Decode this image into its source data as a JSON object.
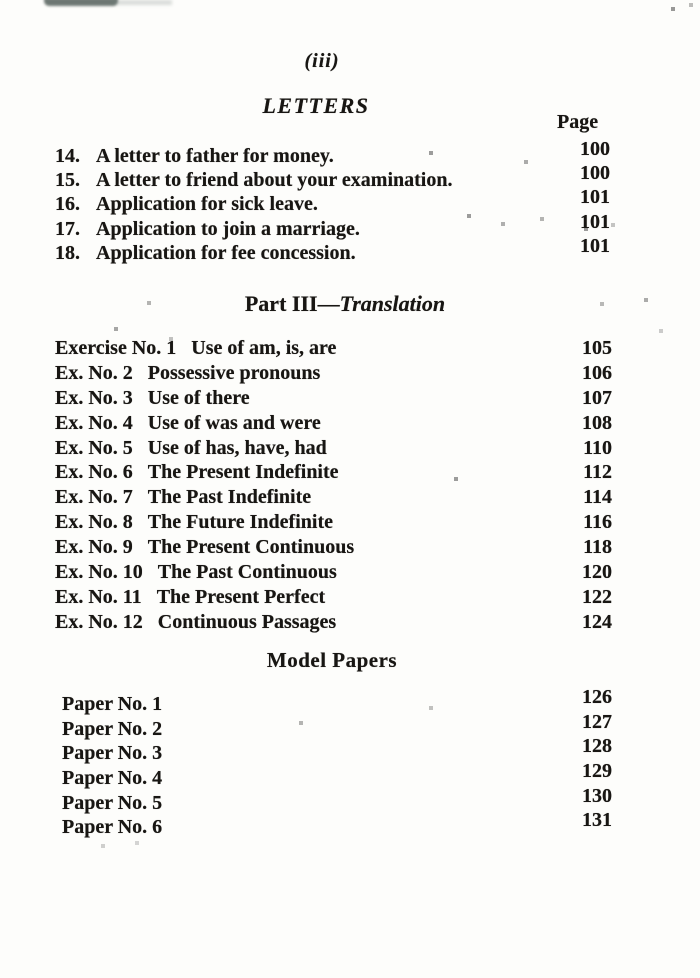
{
  "folio": "(iii)",
  "letters": {
    "heading": "LETTERS",
    "page_column_label": "Page",
    "items": [
      {
        "num": "14.",
        "title": "A letter to father for money.",
        "page": "100"
      },
      {
        "num": "15.",
        "title": "A letter to friend about your examination.",
        "page": "100"
      },
      {
        "num": "16.",
        "title": "Application for sick leave.",
        "page": "101"
      },
      {
        "num": "17.",
        "title": "Application to join a marriage.",
        "page": "101"
      },
      {
        "num": "18.",
        "title": "Application for fee concession.",
        "page": "101"
      }
    ]
  },
  "part3": {
    "heading_roman": "Part III—",
    "heading_italic": "Translation",
    "items": [
      {
        "label": "Exercise No. 1",
        "title": "Use of am, is, are",
        "page": "105"
      },
      {
        "label": "Ex. No. 2",
        "title": "Possessive pronouns",
        "page": "106"
      },
      {
        "label": "Ex. No. 3",
        "title": "Use of there",
        "page": "107"
      },
      {
        "label": "Ex. No. 4",
        "title": "Use of was and were",
        "page": "108"
      },
      {
        "label": "Ex. No. 5",
        "title": "Use of has, have, had",
        "page": "110"
      },
      {
        "label": "Ex. No. 6",
        "title": "The Present Indefinite",
        "page": "112"
      },
      {
        "label": "Ex. No. 7",
        "title": "The Past Indefinite",
        "page": "114"
      },
      {
        "label": "Ex. No. 8",
        "title": "The Future Indefinite",
        "page": "116"
      },
      {
        "label": "Ex. No. 9",
        "title": "The Present Continuous",
        "page": "118"
      },
      {
        "label": "Ex. No. 10",
        "title": "The Past Continuous",
        "page": "120"
      },
      {
        "label": "Ex. No. 11",
        "title": "The Present Perfect",
        "page": "122"
      },
      {
        "label": "Ex. No. 12",
        "title": "Continuous Passages",
        "page": "124"
      }
    ]
  },
  "papers": {
    "heading": "Model Papers",
    "items": [
      {
        "label": "Paper No. 1",
        "page": "126"
      },
      {
        "label": "Paper No. 2",
        "page": "127"
      },
      {
        "label": "Paper No. 3",
        "page": "128"
      },
      {
        "label": "Paper No. 4",
        "page": "129"
      },
      {
        "label": "Paper No. 5",
        "page": "130"
      },
      {
        "label": "Paper No. 6",
        "page": "131"
      }
    ]
  }
}
